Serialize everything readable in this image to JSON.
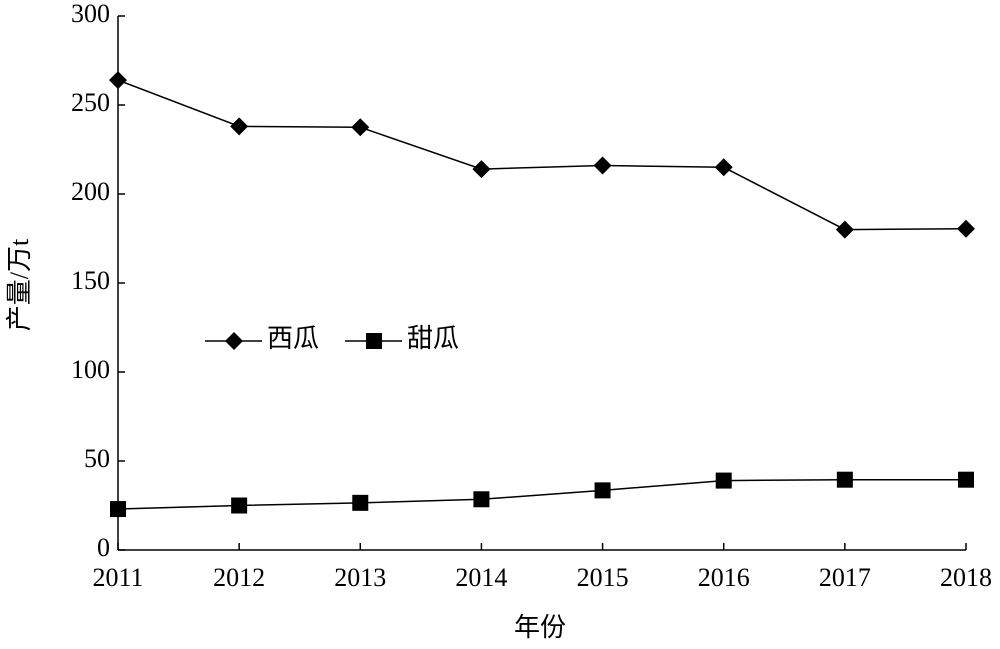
{
  "chart_data": {
    "type": "line",
    "x_label": "年份",
    "y_label": "产量/万t",
    "x": [
      2011,
      2012,
      2013,
      2014,
      2015,
      2016,
      2017,
      2018
    ],
    "xlim": [
      2011,
      2018
    ],
    "xticks": [
      2011,
      2012,
      2013,
      2014,
      2015,
      2016,
      2017,
      2018
    ],
    "ylim": [
      0,
      300
    ],
    "yticks": [
      0,
      50,
      100,
      150,
      200,
      250,
      300
    ],
    "grid": false,
    "legend": "left",
    "series": [
      {
        "name": "西瓜",
        "color": "#000000",
        "marker": "diamond",
        "values": [
          264,
          238,
          237.5,
          214,
          216,
          215,
          180,
          180.5
        ]
      },
      {
        "name": "甜瓜",
        "color": "#000000",
        "marker": "square",
        "values": [
          23,
          25,
          26.5,
          28.5,
          33.5,
          39,
          39.5,
          39.5
        ]
      }
    ]
  }
}
